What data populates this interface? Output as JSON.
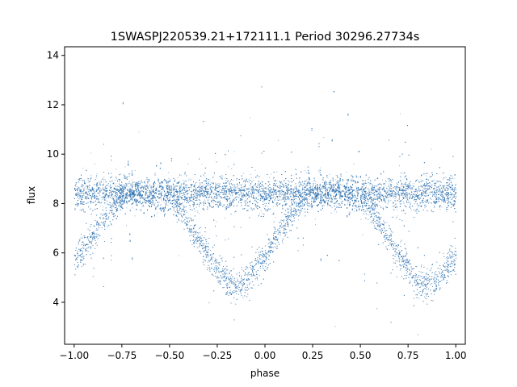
{
  "chart_data": {
    "type": "scatter",
    "title": "1SWASPJ220539.21+172111.1 Period 30296.27734s",
    "xlabel": "phase",
    "ylabel": "flux",
    "xlim": [
      -1.05,
      1.05
    ],
    "ylim": [
      2.3,
      14.35
    ],
    "x_ticks": [
      -1.0,
      -0.75,
      -0.5,
      -0.25,
      0.0,
      0.25,
      0.5,
      0.75,
      1.0
    ],
    "x_tick_labels": [
      "−1.00",
      "−0.75",
      "−0.50",
      "−0.25",
      "0.00",
      "0.25",
      "0.50",
      "0.75",
      "1.00"
    ],
    "y_ticks": [
      4,
      6,
      8,
      10,
      12,
      14
    ],
    "y_tick_labels": [
      "4",
      "6",
      "8",
      "10",
      "12",
      "14"
    ],
    "grid": false,
    "legend": "none",
    "marker_color": "#3778b5",
    "series": [
      {
        "component": "baseline",
        "x": [
          -1.0,
          -0.75,
          -0.5,
          -0.25,
          0.0,
          0.25,
          0.5,
          0.75,
          1.0
        ],
        "y": [
          8.4,
          8.45,
          8.4,
          8.45,
          8.4,
          8.45,
          8.4,
          8.45,
          8.4
        ]
      },
      {
        "component": "eclipse-branch",
        "x": [
          -1.0,
          -0.9,
          -0.8,
          -0.75,
          -0.5,
          -0.4,
          -0.3,
          -0.2,
          -0.15,
          -0.1,
          0.0,
          0.1,
          0.2,
          0.25,
          0.5,
          0.6,
          0.7,
          0.8,
          0.85,
          0.9,
          1.0
        ],
        "y": [
          5.7,
          6.7,
          7.8,
          8.4,
          8.4,
          7.2,
          5.9,
          4.9,
          4.6,
          4.9,
          5.9,
          7.1,
          8.2,
          8.4,
          8.4,
          7.2,
          5.9,
          4.9,
          4.6,
          4.9,
          5.9
        ]
      }
    ]
  }
}
